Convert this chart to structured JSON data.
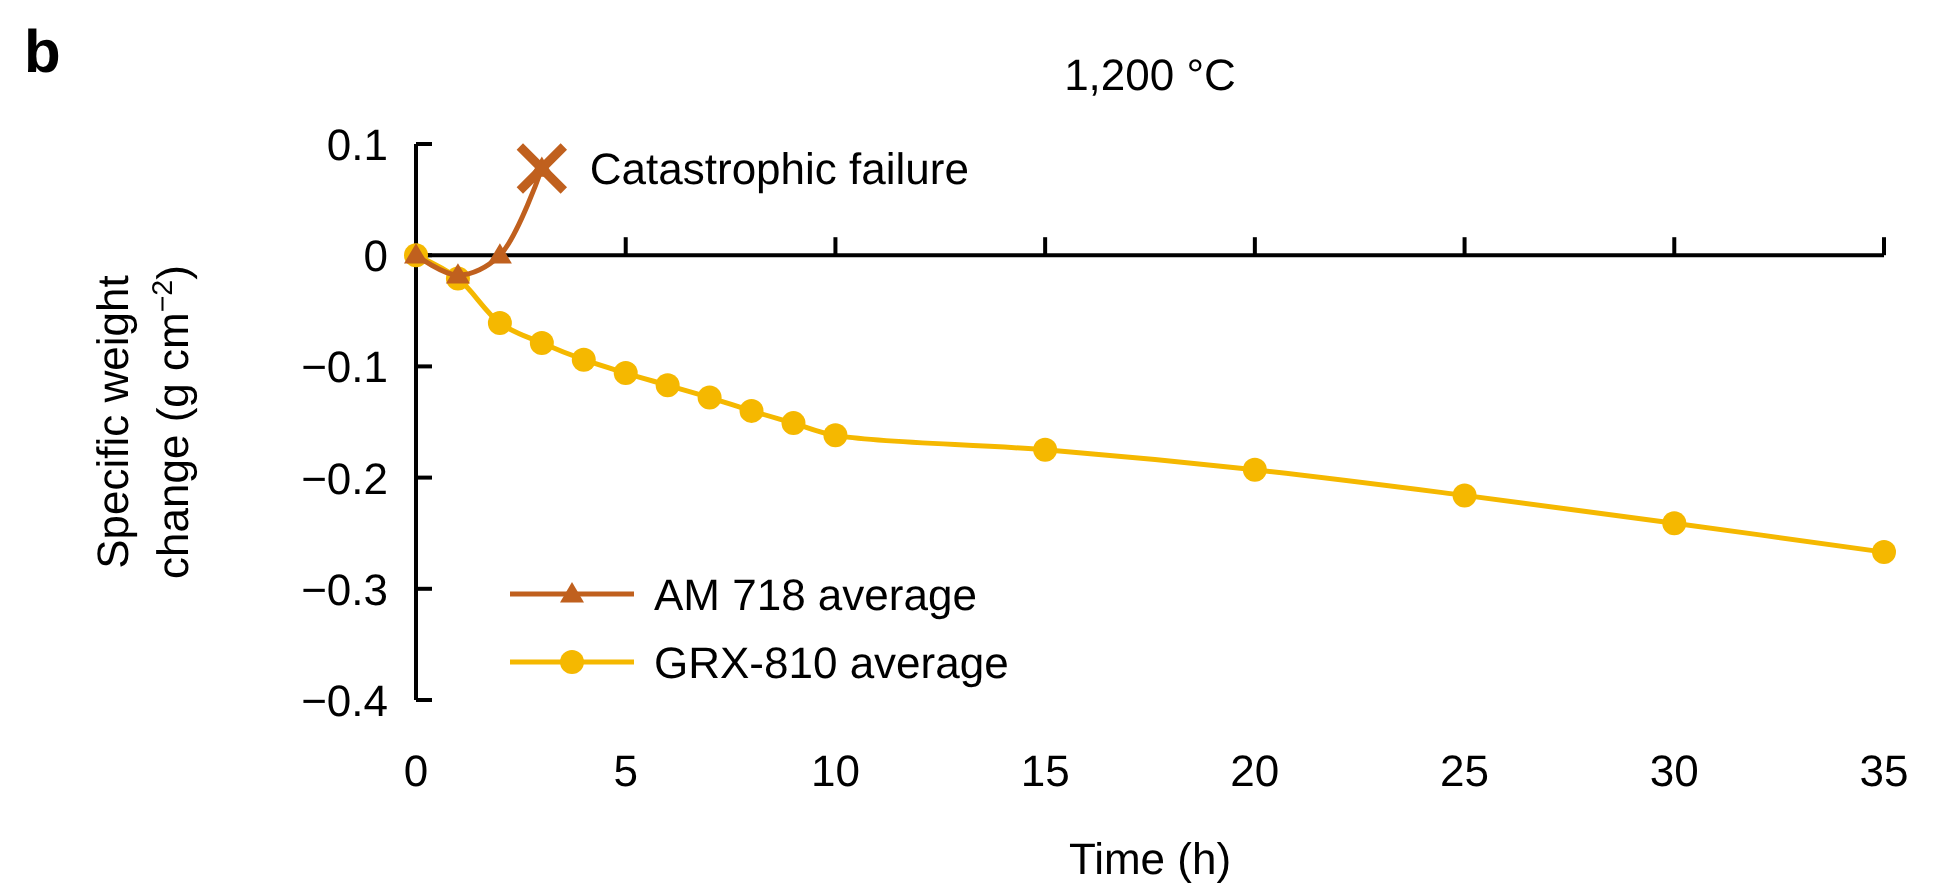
{
  "chart_data": {
    "type": "line",
    "title": "1,200 °C",
    "xlabel": "Time (h)",
    "ylabel": "Specific weight change (g cm$^{−2}$)",
    "xlim": [
      0,
      35
    ],
    "xticks": [
      0,
      5,
      10,
      15,
      20,
      25,
      30,
      35
    ],
    "ylim": [
      -0.4,
      0.1
    ],
    "yticks": [
      0.1,
      0,
      {
        "value": -0.1,
        "label": "−0.1"
      },
      {
        "value": -0.2,
        "label": "−0.2"
      },
      {
        "value": -0.3,
        "label": "−0.3"
      },
      {
        "value": -0.4,
        "label": "−0.4"
      }
    ],
    "legend": "bottom left",
    "series": [
      {
        "name": "AM 718 average",
        "color": "#c0601e",
        "marker": "triangle",
        "x": [
          0,
          1,
          2,
          3
        ],
        "values": [
          0,
          -0.018,
          0,
          0.078
        ]
      },
      {
        "name": "GRX-810 average",
        "color": "#f5b800",
        "marker": "circle",
        "x": [
          0,
          1,
          2,
          3,
          4,
          5,
          6,
          7,
          8,
          9,
          10,
          15,
          20,
          25,
          30,
          35
        ],
        "values": [
          0,
          -0.021,
          -0.061,
          -0.079,
          -0.094,
          -0.106,
          -0.117,
          -0.128,
          -0.14,
          -0.151,
          -0.162,
          -0.175,
          -0.193,
          -0.216,
          -0.241,
          -0.267
        ]
      },
      {
        "type": "scatter",
        "color": "#c0601e",
        "marker": "cross",
        "x": [
          3
        ],
        "values": [
          0.078
        ]
      }
    ],
    "annotations": [
      "b",
      {
        "text": "Catastrophic failure",
        "x": 3,
        "y": 0.078
      }
    ]
  }
}
